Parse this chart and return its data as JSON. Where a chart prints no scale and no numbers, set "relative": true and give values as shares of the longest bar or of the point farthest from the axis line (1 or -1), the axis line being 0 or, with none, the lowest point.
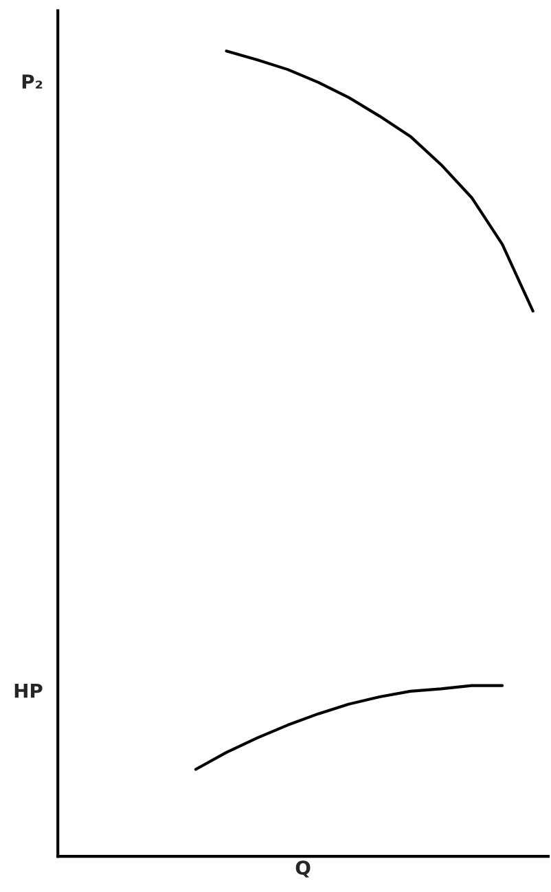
{
  "chart_data": {
    "type": "line",
    "relative": true,
    "xlabel": "Q",
    "categories": [
      null,
      null,
      null,
      null,
      null,
      null,
      null,
      null,
      null,
      null,
      null,
      null,
      null,
      null,
      null,
      null
    ],
    "series": [
      {
        "color": "#000000",
        "values": [
          null,
          null,
          null,
          null,
          null,
          1.0,
          0.989,
          0.977,
          0.961,
          0.942,
          0.919,
          0.894,
          0.859,
          0.818,
          0.76,
          0.677
        ]
      },
      {
        "color": "#000000",
        "values": [
          null,
          null,
          null,
          null,
          0.108,
          0.129,
          0.147,
          0.163,
          0.177,
          0.189,
          0.198,
          0.205,
          0.208,
          0.212,
          0.212,
          null
        ]
      }
    ],
    "annotations": [
      "P₂",
      "HP"
    ],
    "legend": false,
    "marker": "none",
    "line_style": "solid"
  }
}
